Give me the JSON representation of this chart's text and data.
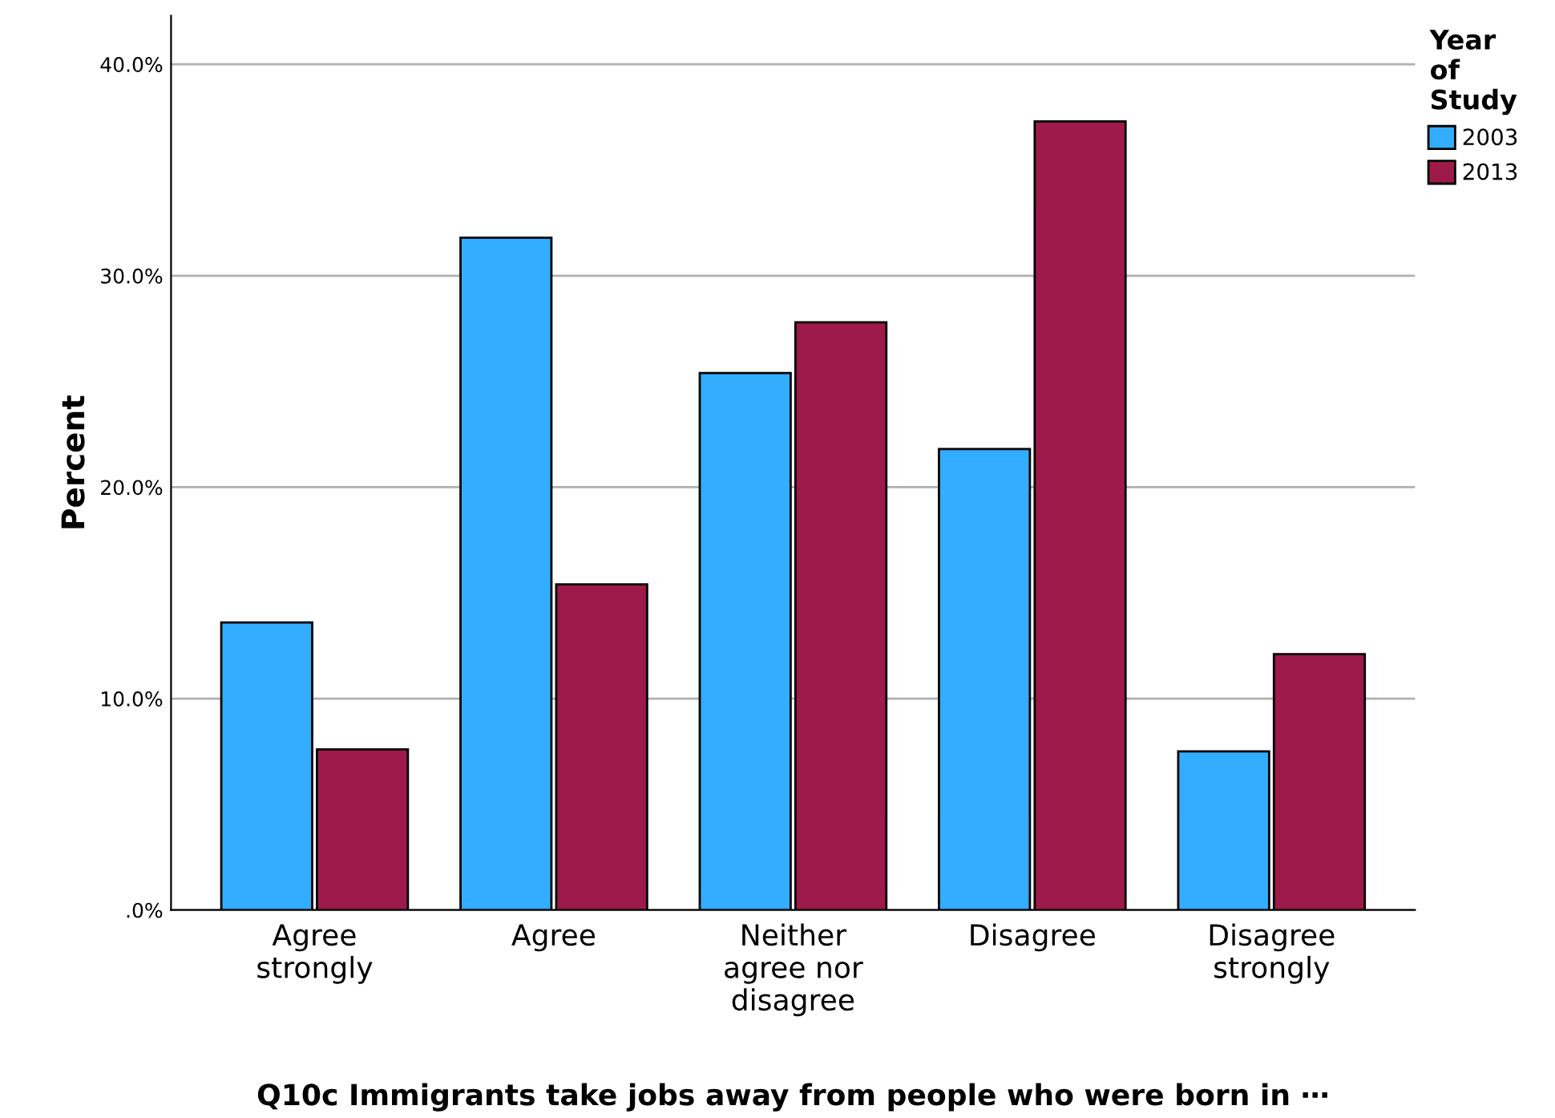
{
  "chart_data": {
    "type": "bar",
    "xlabel": "Q10c Immigrants take jobs away from people who were born in ⋯",
    "ylabel": "Percent",
    "legend_title": "Year\nof\nStudy",
    "categories": [
      "Agree\nstrongly",
      "Agree",
      "Neither\nagree nor\ndisagree",
      "Disagree",
      "Disagree\nstrongly"
    ],
    "series": [
      {
        "name": "2003",
        "color": "#33adff",
        "values": [
          13.6,
          31.8,
          25.4,
          21.8,
          7.5
        ]
      },
      {
        "name": "2013",
        "color": "#9e1a4a",
        "values": [
          7.6,
          15.4,
          27.8,
          37.3,
          12.1
        ]
      }
    ],
    "ylim": [
      0,
      42.3
    ],
    "yticks": [
      {
        "value": 0,
        "label": ".0%"
      },
      {
        "value": 10,
        "label": "10.0%"
      },
      {
        "value": 20,
        "label": "20.0%"
      },
      {
        "value": 30,
        "label": "30.0%"
      },
      {
        "value": 40,
        "label": "40.0%"
      }
    ],
    "grid": "y",
    "legend": "top right"
  }
}
